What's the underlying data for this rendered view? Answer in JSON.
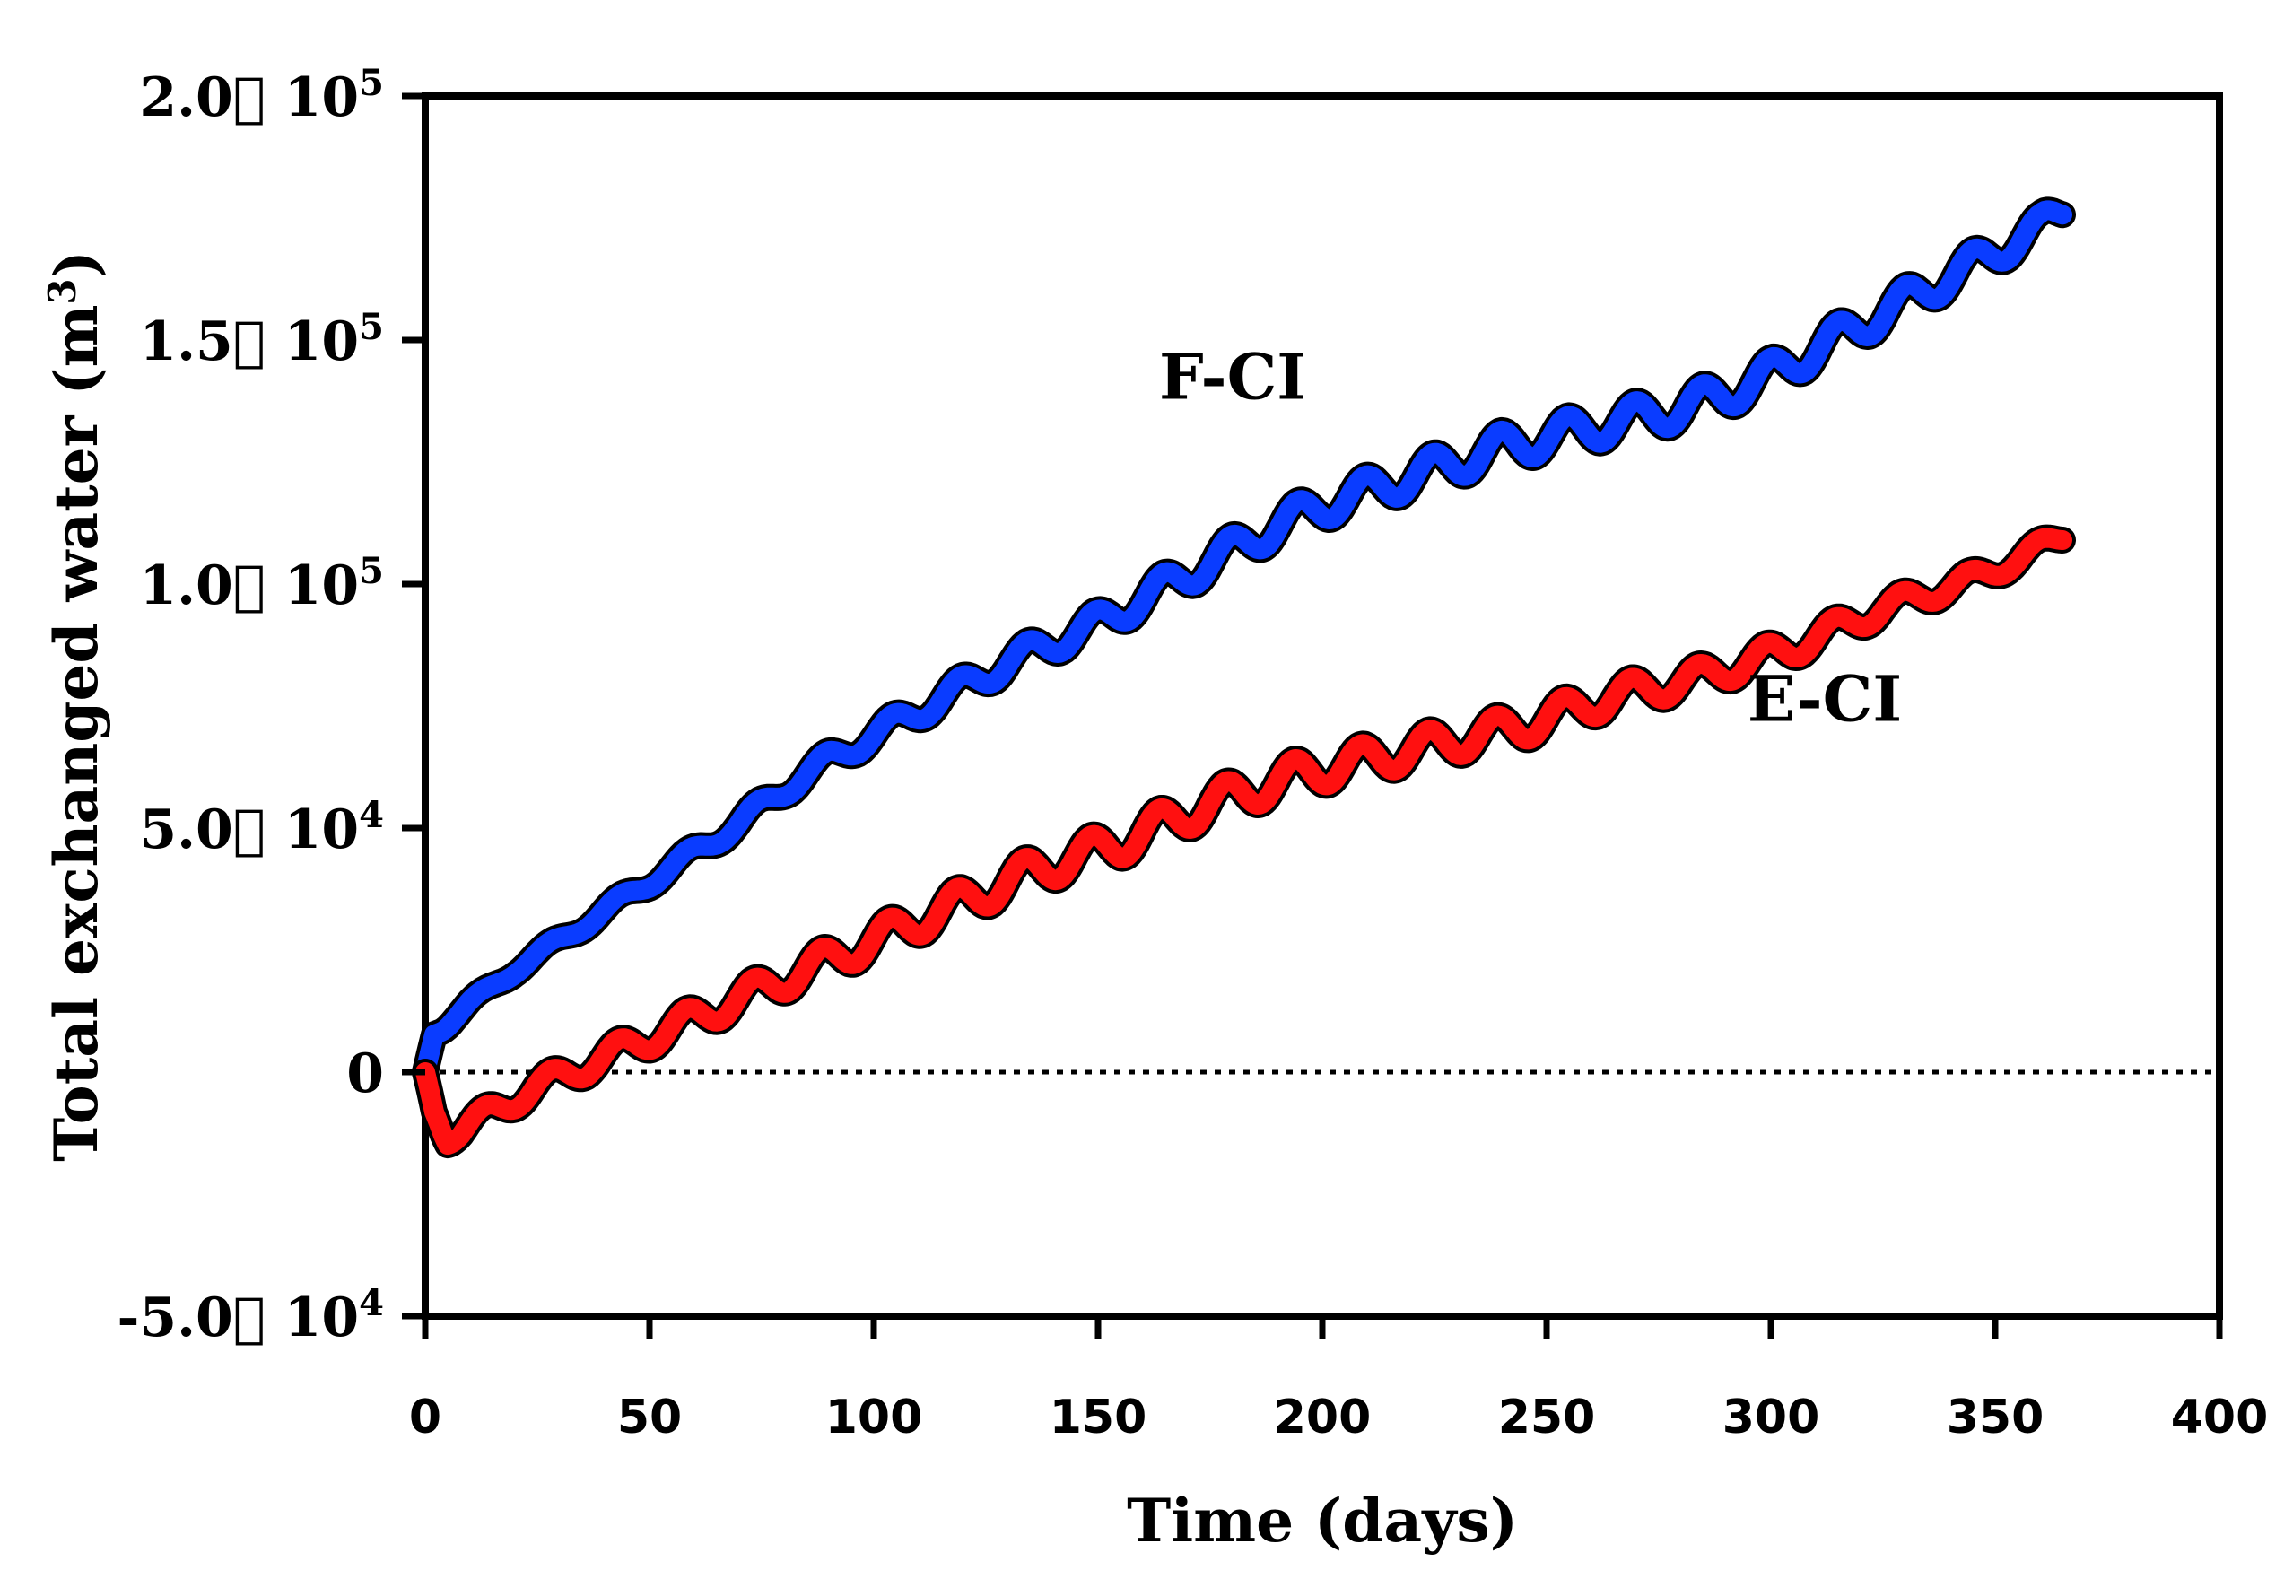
{
  "chart_data": {
    "type": "line",
    "title": "",
    "xlabel": "Time (days)",
    "ylabel": "Total exchanged water (m",
    "ylabel_sup": "3",
    "ylabel_close": ")",
    "xlim": [
      0,
      400
    ],
    "ylim": [
      -50000,
      200000
    ],
    "x_ticks": [
      0,
      50,
      100,
      150,
      200,
      250,
      300,
      350,
      400
    ],
    "x_tick_labels": [
      "0",
      "50",
      "100",
      "150",
      "200",
      "250",
      "300",
      "350",
      "400"
    ],
    "y_ticks": [
      -50000,
      0,
      50000,
      100000,
      150000,
      200000
    ],
    "y_tick_labels": [
      {
        "base": "-5.0\u0000 10",
        "exp": "4"
      },
      {
        "base": "0",
        "exp": ""
      },
      {
        "base": "5.0\u0000 10",
        "exp": "4"
      },
      {
        "base": "1.0\u0000 10",
        "exp": "5"
      },
      {
        "base": "1.5\u0000 10",
        "exp": "5"
      },
      {
        "base": "2.0\u0000 10",
        "exp": "5"
      }
    ],
    "zero_line": "dotted",
    "series": [
      {
        "name": "F-CI",
        "color": "#0a3cff",
        "x": [
          0,
          2,
          5,
          10,
          20,
          30,
          40,
          50,
          60,
          70,
          80,
          90,
          100,
          110,
          120,
          130,
          140,
          150,
          160,
          170,
          180,
          190,
          200,
          210,
          220,
          230,
          240,
          250,
          260,
          270,
          280,
          290,
          300,
          310,
          320,
          330,
          340,
          350,
          360,
          365
        ],
        "y": [
          0,
          8000,
          10000,
          14000,
          21000,
          27000,
          33000,
          39000,
          45000,
          51000,
          58000,
          64000,
          69000,
          74000,
          79000,
          84000,
          88000,
          92000,
          97000,
          102000,
          107000,
          112000,
          116000,
          119000,
          122000,
          125000,
          128000,
          130000,
          132000,
          134000,
          136000,
          139000,
          143000,
          148000,
          153000,
          158000,
          163000,
          168000,
          173000,
          177000
        ]
      },
      {
        "name": "E-CI",
        "color": "#ff1010",
        "x": [
          0,
          2,
          5,
          8,
          15,
          25,
          35,
          45,
          55,
          65,
          75,
          85,
          95,
          105,
          115,
          125,
          135,
          145,
          155,
          165,
          175,
          185,
          195,
          205,
          215,
          225,
          235,
          245,
          255,
          265,
          275,
          285,
          295,
          305,
          315,
          325,
          335,
          345,
          355,
          365
        ],
        "y": [
          0,
          -8000,
          -13000,
          -12000,
          -8000,
          -3000,
          1000,
          5000,
          9000,
          13000,
          17000,
          21000,
          25000,
          29000,
          33000,
          37000,
          41000,
          44000,
          47000,
          51000,
          55000,
          58000,
          61000,
          63000,
          65000,
          67000,
          69000,
          71000,
          74000,
          77000,
          79000,
          81000,
          84000,
          87000,
          91000,
          95000,
          98000,
          101000,
          105000,
          110000
        ]
      }
    ],
    "annotations": [
      {
        "text": "F-CI",
        "x": 180,
        "y": 138000
      },
      {
        "text": "E-CI",
        "x": 312,
        "y": 72000
      }
    ]
  }
}
